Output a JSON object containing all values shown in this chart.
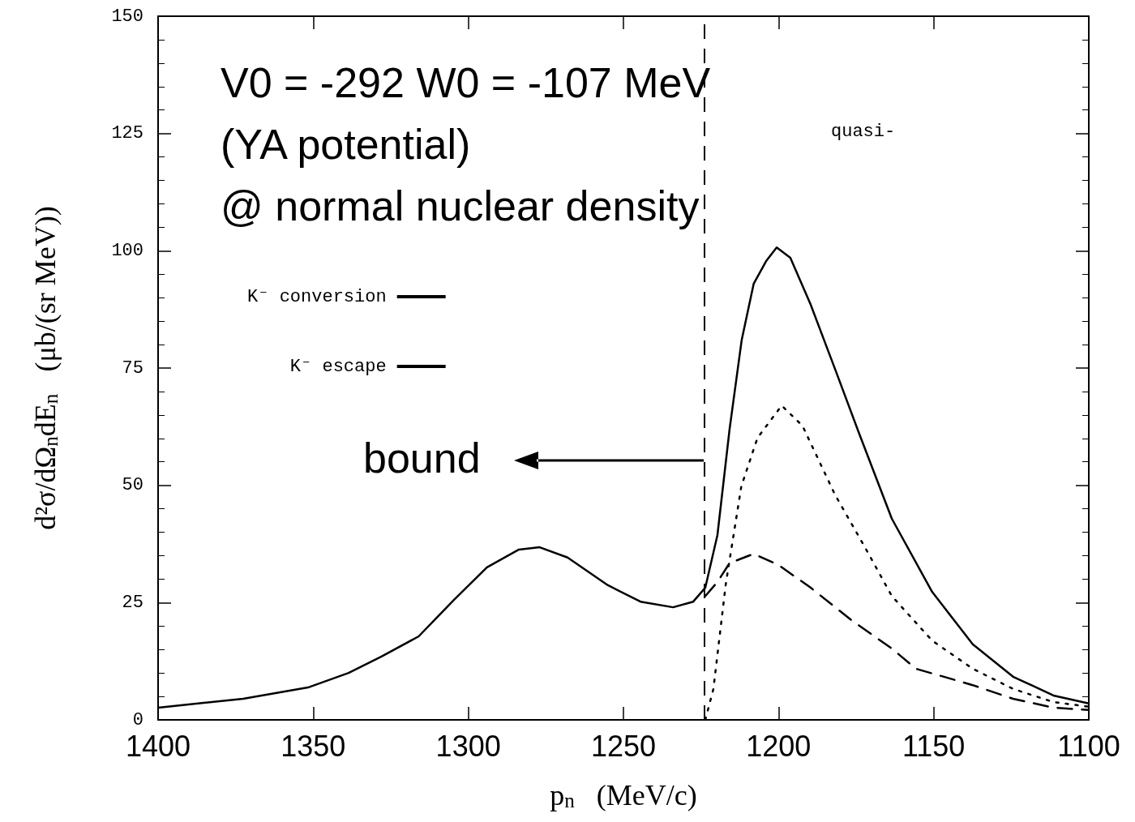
{
  "chart_data": {
    "type": "line",
    "xlabel": "p$_{n}$   (MeV/c)",
    "ylabel": "d²σ/dΩ$_{n}$dE$_{n}$   (μb/(sr MeV))",
    "annotations": [
      "V0 = -292 W0 = -107 MeV",
      "(YA potential)",
      "@ normal nuclear density",
      "quasi-",
      "bound"
    ],
    "xlim": [
      1400,
      1100
    ],
    "xticks": [
      1400,
      1350,
      1300,
      1250,
      1200,
      1150,
      1100
    ],
    "ylim": [
      0,
      150
    ],
    "yticks": [
      0,
      25,
      50,
      75,
      100,
      125,
      150
    ],
    "grid": false,
    "legend": "left",
    "marker": "none",
    "ref_lines": [
      {
        "axis": "x",
        "value": 1224,
        "label": null,
        "line_style": "dashed",
        "color": "#000000"
      }
    ],
    "series": [
      {
        "color": "#000000",
        "line_style": "solid",
        "x": [
          1400,
          1372.6,
          1351.7,
          1338.6,
          1328,
          1316,
          1304.6,
          1294,
          1283.7,
          1277,
          1268,
          1255,
          1244.5,
          1234,
          1227.5,
          1223.6,
          1219.7,
          1215.8,
          1211.9,
          1208,
          1204,
          1200.6,
          1196.2,
          1189.7,
          1181.8,
          1174,
          1163.5,
          1150.5,
          1137.4,
          1124.4,
          1111.4,
          1100
        ],
        "values": [
          2.6,
          4.5,
          6.9,
          10,
          13.5,
          17.8,
          25.6,
          32.5,
          36.3,
          36.8,
          34.6,
          28.7,
          25.2,
          24,
          25.2,
          28.2,
          39.4,
          61.9,
          80.9,
          93,
          97.8,
          100.7,
          98.5,
          88.6,
          74.8,
          61,
          42.9,
          27.3,
          16.1,
          9.2,
          5.2,
          3.5
        ]
      },
      {
        "name": "K⁻ conversion",
        "color": "#000000",
        "line_style": "dashed",
        "x": [
          1223.6,
          1219.7,
          1215.8,
          1208,
          1200,
          1189.7,
          1176.6,
          1163.5,
          1155.7,
          1137.4,
          1124.4,
          1111.4,
          1100
        ],
        "values": [
          26.4,
          29.4,
          33.4,
          35.4,
          33,
          28.2,
          21.3,
          15.2,
          10.9,
          7.4,
          4.5,
          2.6,
          2.1
        ]
      },
      {
        "name": "K⁻ escape",
        "color": "#000000",
        "line_style": "dotted",
        "x": [
          1223.6,
          1221,
          1217,
          1212,
          1206.8,
          1199,
          1192.3,
          1181.8,
          1171.4,
          1163.5,
          1150.5,
          1137.4,
          1124.4,
          1111.4,
          1100
        ],
        "values": [
          0,
          6.6,
          29,
          49.8,
          60.1,
          67,
          62.7,
          48,
          35.9,
          26.4,
          16.9,
          10.9,
          6.6,
          3.8,
          2.8
        ]
      }
    ]
  }
}
